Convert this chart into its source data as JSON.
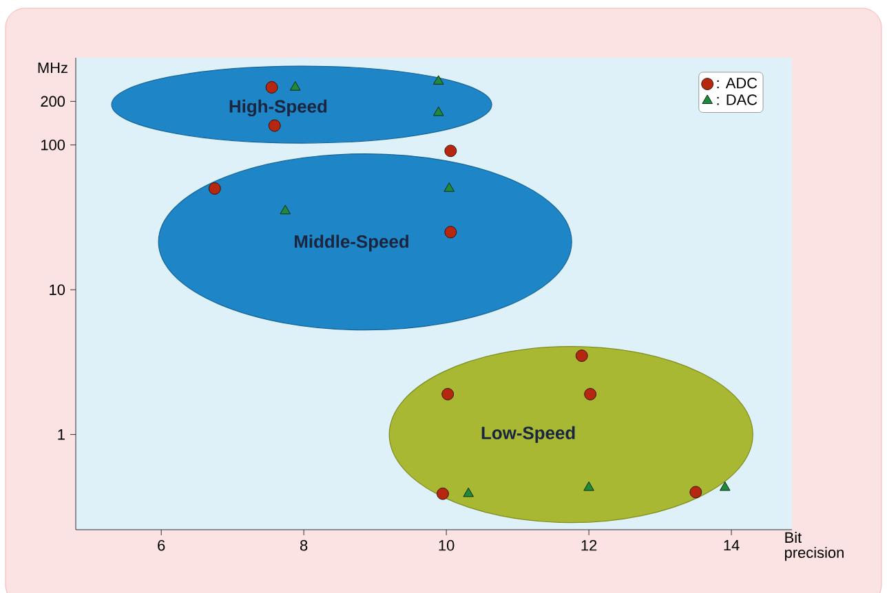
{
  "chart_data": {
    "type": "scatter",
    "xlabel": "Bit precision",
    "ylabel": "MHz",
    "log": "y",
    "xlim": [
      4.8,
      14.85
    ],
    "xticks": [
      6,
      8,
      10,
      12,
      14
    ],
    "ylim": [
      0.22,
      400
    ],
    "yticks": [
      1,
      10,
      100,
      200
    ],
    "legend": "top right",
    "series": [
      {
        "name": ": ADC",
        "color": "#b5280f",
        "marker": "circle",
        "x": [
          7.55,
          7.59,
          6.75,
          10.06,
          10.06,
          10.02,
          11.9,
          12.02,
          9.95,
          13.5
        ],
        "values": [
          250,
          136,
          50,
          91,
          25,
          1.9,
          3.5,
          1.9,
          0.39,
          0.4
        ]
      },
      {
        "name": ": DAC",
        "color": "#1f8a3a",
        "marker": "triangle",
        "x": [
          7.88,
          9.89,
          9.89,
          7.74,
          10.04,
          10.31,
          12.0,
          13.91
        ],
        "values": [
          250,
          275,
          167,
          35,
          50,
          0.39,
          0.43,
          0.43
        ]
      }
    ],
    "annotations": [
      "High-Speed",
      "Middle-Speed",
      "Low-Speed"
    ]
  }
}
